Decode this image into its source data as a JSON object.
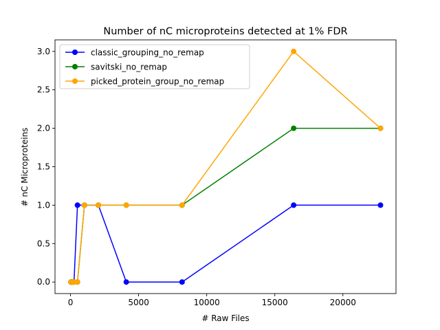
{
  "chart_data": {
    "type": "line",
    "title": "Number of nC microproteins detected at 1% FDR",
    "xlabel": "# Raw Files",
    "ylabel": "# nC Microproteins",
    "xlim": [
      -1138,
      23898
    ],
    "ylim": [
      -0.15,
      3.15
    ],
    "xticks": [
      0,
      5000,
      10000,
      15000,
      20000
    ],
    "xtick_labels": [
      "0",
      "5000",
      "10000",
      "15000",
      "20000"
    ],
    "yticks": [
      0.0,
      0.5,
      1.0,
      1.5,
      2.0,
      2.5,
      3.0
    ],
    "ytick_labels": [
      "0.0",
      "0.5",
      "1.0",
      "1.5",
      "2.0",
      "2.5",
      "3.0"
    ],
    "grid": false,
    "legend_position": "upper-left",
    "x": [
      32,
      64,
      128,
      256,
      512,
      1024,
      2048,
      4096,
      8192,
      16384,
      22760
    ],
    "series": [
      {
        "name": "classic_grouping_no_remap",
        "color": "#0000ff",
        "values": [
          0,
          0,
          0,
          0,
          1,
          1,
          1,
          0,
          0,
          1,
          1
        ]
      },
      {
        "name": "savitski_no_remap",
        "color": "#008000",
        "values": [
          0,
          0,
          0,
          0,
          0,
          1,
          1,
          1,
          1,
          2,
          2
        ]
      },
      {
        "name": "picked_protein_group_no_remap",
        "color": "#ffa500",
        "values": [
          0,
          0,
          0,
          0,
          0,
          1,
          1,
          1,
          1,
          3,
          2
        ]
      }
    ]
  }
}
